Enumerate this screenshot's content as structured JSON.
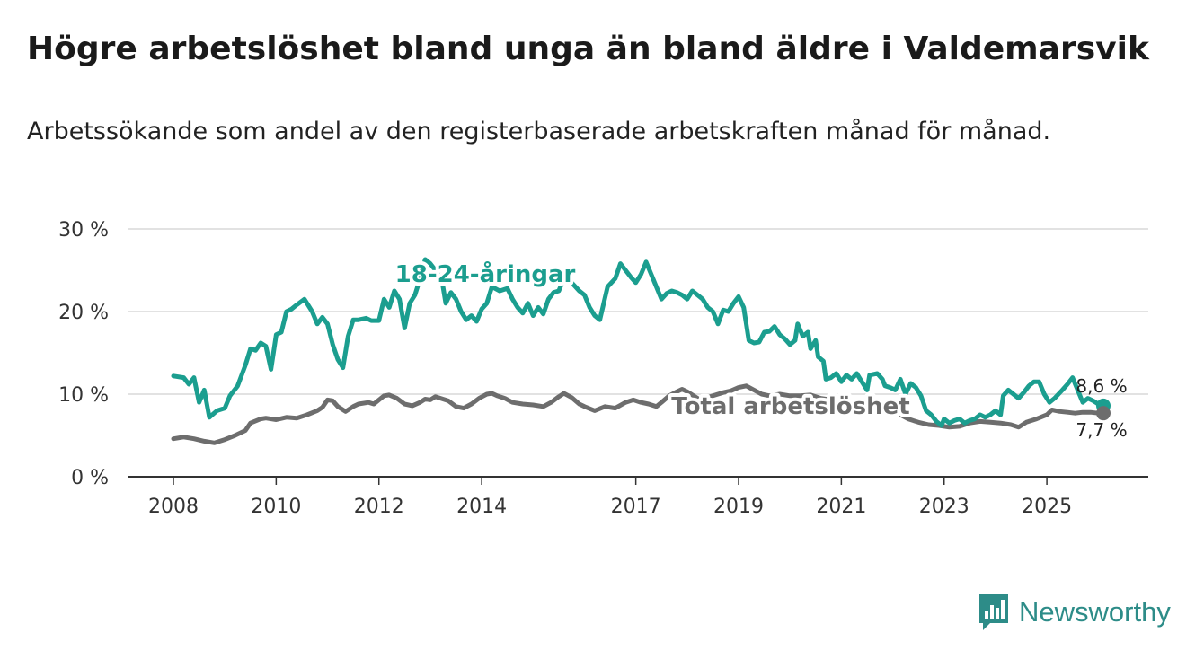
{
  "title": "Högre arbetslöshet bland unga än bland äldre i Valdemarsvik",
  "subtitle": "Arbetssökande som andel av den registerbaserade arbetskraften månad för månad.",
  "brand": {
    "name": "Newsworthy",
    "icon": "newsworthy-logo-icon"
  },
  "colors": {
    "youth": "#1b9e8f",
    "total": "#6d6d6d",
    "grid": "#d9d9d9",
    "axis": "#333333",
    "brand": "#2d8c88"
  },
  "chart_data": {
    "type": "line",
    "title": "Högre arbetslöshet bland unga än bland äldre i Valdemarsvik",
    "xlabel": "",
    "ylabel": "",
    "xlim": [
      2008,
      2026.1
    ],
    "ylim": [
      0,
      30
    ],
    "y_ticks": [
      0,
      10,
      20,
      30
    ],
    "y_tick_labels": [
      "0 %",
      "10 %",
      "20 %",
      "30 %"
    ],
    "x_ticks": [
      2008,
      2010,
      2012,
      2014,
      2017,
      2019,
      2021,
      2023,
      2025
    ],
    "x_tick_labels": [
      "2008",
      "2010",
      "2012",
      "2014",
      "2017",
      "2019",
      "2021",
      "2023",
      "2025"
    ],
    "grid": true,
    "series": [
      {
        "name": "18-24-åringar",
        "label": "18-24-åringar",
        "points": [
          [
            2008.0,
            12.2
          ],
          [
            2008.2,
            12.0
          ],
          [
            2008.3,
            11.2
          ],
          [
            2008.4,
            12.0
          ],
          [
            2008.5,
            9.0
          ],
          [
            2008.6,
            10.5
          ],
          [
            2008.7,
            7.2
          ],
          [
            2008.85,
            8.0
          ],
          [
            2009.0,
            8.3
          ],
          [
            2009.1,
            9.8
          ],
          [
            2009.25,
            11.0
          ],
          [
            2009.4,
            13.5
          ],
          [
            2009.5,
            15.5
          ],
          [
            2009.6,
            15.3
          ],
          [
            2009.7,
            16.2
          ],
          [
            2009.8,
            15.8
          ],
          [
            2009.9,
            13.0
          ],
          [
            2010.0,
            17.2
          ],
          [
            2010.1,
            17.5
          ],
          [
            2010.2,
            20.0
          ],
          [
            2010.3,
            20.3
          ],
          [
            2010.4,
            20.8
          ],
          [
            2010.55,
            21.5
          ],
          [
            2010.7,
            20.0
          ],
          [
            2010.8,
            18.5
          ],
          [
            2010.9,
            19.3
          ],
          [
            2011.0,
            18.5
          ],
          [
            2011.1,
            16.0
          ],
          [
            2011.2,
            14.2
          ],
          [
            2011.3,
            13.2
          ],
          [
            2011.4,
            17.0
          ],
          [
            2011.5,
            19.0
          ],
          [
            2011.6,
            19.0
          ],
          [
            2011.75,
            19.2
          ],
          [
            2011.85,
            18.9
          ],
          [
            2012.0,
            18.9
          ],
          [
            2012.1,
            21.5
          ],
          [
            2012.2,
            20.5
          ],
          [
            2012.3,
            22.5
          ],
          [
            2012.4,
            21.5
          ],
          [
            2012.5,
            18.0
          ],
          [
            2012.6,
            21.0
          ],
          [
            2012.7,
            22.0
          ],
          [
            2012.8,
            24.0
          ],
          [
            2012.9,
            26.3
          ],
          [
            2013.0,
            25.8
          ],
          [
            2013.1,
            25.0
          ],
          [
            2013.2,
            24.8
          ],
          [
            2013.3,
            21.0
          ],
          [
            2013.4,
            22.3
          ],
          [
            2013.5,
            21.5
          ],
          [
            2013.6,
            20.0
          ],
          [
            2013.7,
            19.0
          ],
          [
            2013.8,
            19.5
          ],
          [
            2013.9,
            18.8
          ],
          [
            2014.0,
            20.3
          ],
          [
            2014.1,
            21.0
          ],
          [
            2014.2,
            23.0
          ],
          [
            2014.35,
            22.5
          ],
          [
            2014.5,
            22.8
          ],
          [
            2014.6,
            21.5
          ],
          [
            2014.7,
            20.5
          ],
          [
            2014.8,
            19.8
          ],
          [
            2014.9,
            21.0
          ],
          [
            2015.0,
            19.5
          ],
          [
            2015.1,
            20.5
          ],
          [
            2015.2,
            19.7
          ],
          [
            2015.3,
            21.5
          ],
          [
            2015.4,
            22.3
          ],
          [
            2015.5,
            22.5
          ],
          [
            2015.6,
            24.0
          ],
          [
            2015.75,
            23.5
          ],
          [
            2015.9,
            22.5
          ],
          [
            2016.0,
            22.0
          ],
          [
            2016.1,
            20.5
          ],
          [
            2016.2,
            19.5
          ],
          [
            2016.3,
            19.0
          ],
          [
            2016.45,
            23.0
          ],
          [
            2016.6,
            24.0
          ],
          [
            2016.7,
            25.8
          ],
          [
            2016.8,
            25.0
          ],
          [
            2016.9,
            24.2
          ],
          [
            2017.0,
            23.5
          ],
          [
            2017.1,
            24.5
          ],
          [
            2017.2,
            26.0
          ],
          [
            2017.3,
            24.5
          ],
          [
            2017.4,
            23.0
          ],
          [
            2017.5,
            21.5
          ],
          [
            2017.6,
            22.2
          ],
          [
            2017.7,
            22.5
          ],
          [
            2017.8,
            22.3
          ],
          [
            2017.9,
            22.0
          ],
          [
            2018.0,
            21.5
          ],
          [
            2018.1,
            22.5
          ],
          [
            2018.2,
            22.0
          ],
          [
            2018.3,
            21.5
          ],
          [
            2018.4,
            20.5
          ],
          [
            2018.5,
            20.0
          ],
          [
            2018.6,
            18.5
          ],
          [
            2018.7,
            20.2
          ],
          [
            2018.8,
            20.0
          ],
          [
            2018.9,
            21.0
          ],
          [
            2019.0,
            21.8
          ],
          [
            2019.1,
            20.5
          ],
          [
            2019.2,
            16.5
          ],
          [
            2019.3,
            16.2
          ],
          [
            2019.4,
            16.3
          ],
          [
            2019.5,
            17.5
          ],
          [
            2019.6,
            17.6
          ],
          [
            2019.7,
            18.2
          ],
          [
            2019.8,
            17.2
          ],
          [
            2019.9,
            16.7
          ],
          [
            2020.0,
            16.0
          ],
          [
            2020.1,
            16.5
          ],
          [
            2020.15,
            18.5
          ],
          [
            2020.25,
            17.0
          ],
          [
            2020.35,
            17.5
          ],
          [
            2020.4,
            15.5
          ],
          [
            2020.5,
            16.5
          ],
          [
            2020.55,
            14.5
          ],
          [
            2020.65,
            14.0
          ],
          [
            2020.7,
            11.8
          ],
          [
            2020.8,
            12.0
          ],
          [
            2020.9,
            12.5
          ],
          [
            2021.0,
            11.5
          ],
          [
            2021.1,
            12.3
          ],
          [
            2021.2,
            11.8
          ],
          [
            2021.3,
            12.5
          ],
          [
            2021.4,
            11.5
          ],
          [
            2021.5,
            10.5
          ],
          [
            2021.55,
            12.3
          ],
          [
            2021.7,
            12.5
          ],
          [
            2021.8,
            11.8
          ],
          [
            2021.85,
            11.0
          ],
          [
            2021.95,
            10.8
          ],
          [
            2022.05,
            10.5
          ],
          [
            2022.15,
            11.8
          ],
          [
            2022.25,
            10.0
          ],
          [
            2022.35,
            11.3
          ],
          [
            2022.45,
            10.8
          ],
          [
            2022.55,
            9.8
          ],
          [
            2022.65,
            8.0
          ],
          [
            2022.75,
            7.5
          ],
          [
            2022.85,
            6.7
          ],
          [
            2022.95,
            6.2
          ],
          [
            2023.0,
            7.0
          ],
          [
            2023.1,
            6.5
          ],
          [
            2023.2,
            6.8
          ],
          [
            2023.3,
            7.0
          ],
          [
            2023.4,
            6.5
          ],
          [
            2023.5,
            6.8
          ],
          [
            2023.6,
            7.0
          ],
          [
            2023.7,
            7.5
          ],
          [
            2023.8,
            7.2
          ],
          [
            2023.9,
            7.5
          ],
          [
            2024.0,
            8.0
          ],
          [
            2024.1,
            7.5
          ],
          [
            2024.15,
            9.8
          ],
          [
            2024.25,
            10.5
          ],
          [
            2024.35,
            10.0
          ],
          [
            2024.45,
            9.5
          ],
          [
            2024.55,
            10.2
          ],
          [
            2024.65,
            11.0
          ],
          [
            2024.75,
            11.5
          ],
          [
            2024.85,
            11.5
          ],
          [
            2024.95,
            10.0
          ],
          [
            2025.05,
            9.0
          ],
          [
            2025.15,
            9.5
          ],
          [
            2025.3,
            10.5
          ],
          [
            2025.4,
            11.2
          ],
          [
            2025.5,
            12.0
          ],
          [
            2025.6,
            10.5
          ],
          [
            2025.7,
            9.0
          ],
          [
            2025.8,
            9.5
          ],
          [
            2025.9,
            9.2
          ],
          [
            2026.0,
            8.8
          ],
          [
            2026.1,
            8.6
          ]
        ]
      },
      {
        "name": "Total arbetslöshet",
        "label": "Total arbetslöshet",
        "points": [
          [
            2008.0,
            4.6
          ],
          [
            2008.2,
            4.8
          ],
          [
            2008.4,
            4.6
          ],
          [
            2008.6,
            4.3
          ],
          [
            2008.8,
            4.1
          ],
          [
            2009.0,
            4.5
          ],
          [
            2009.2,
            5.0
          ],
          [
            2009.4,
            5.6
          ],
          [
            2009.5,
            6.5
          ],
          [
            2009.7,
            7.0
          ],
          [
            2009.8,
            7.1
          ],
          [
            2010.0,
            6.9
          ],
          [
            2010.2,
            7.2
          ],
          [
            2010.4,
            7.1
          ],
          [
            2010.6,
            7.5
          ],
          [
            2010.8,
            8.0
          ],
          [
            2010.9,
            8.4
          ],
          [
            2011.0,
            9.3
          ],
          [
            2011.1,
            9.2
          ],
          [
            2011.2,
            8.5
          ],
          [
            2011.35,
            7.9
          ],
          [
            2011.5,
            8.5
          ],
          [
            2011.6,
            8.8
          ],
          [
            2011.8,
            9.0
          ],
          [
            2011.9,
            8.8
          ],
          [
            2012.0,
            9.3
          ],
          [
            2012.1,
            9.8
          ],
          [
            2012.2,
            9.9
          ],
          [
            2012.35,
            9.5
          ],
          [
            2012.5,
            8.8
          ],
          [
            2012.65,
            8.6
          ],
          [
            2012.8,
            9.0
          ],
          [
            2012.9,
            9.4
          ],
          [
            2013.0,
            9.3
          ],
          [
            2013.1,
            9.7
          ],
          [
            2013.2,
            9.5
          ],
          [
            2013.35,
            9.2
          ],
          [
            2013.5,
            8.5
          ],
          [
            2013.65,
            8.3
          ],
          [
            2013.8,
            8.8
          ],
          [
            2013.95,
            9.5
          ],
          [
            2014.1,
            10.0
          ],
          [
            2014.2,
            10.1
          ],
          [
            2014.3,
            9.8
          ],
          [
            2014.45,
            9.5
          ],
          [
            2014.6,
            9.0
          ],
          [
            2014.8,
            8.8
          ],
          [
            2015.0,
            8.7
          ],
          [
            2015.2,
            8.5
          ],
          [
            2015.35,
            9.0
          ],
          [
            2015.5,
            9.7
          ],
          [
            2015.6,
            10.1
          ],
          [
            2015.75,
            9.6
          ],
          [
            2015.9,
            8.8
          ],
          [
            2016.0,
            8.5
          ],
          [
            2016.2,
            8.0
          ],
          [
            2016.4,
            8.5
          ],
          [
            2016.6,
            8.3
          ],
          [
            2016.8,
            9.0
          ],
          [
            2016.95,
            9.3
          ],
          [
            2017.1,
            9.0
          ],
          [
            2017.25,
            8.8
          ],
          [
            2017.4,
            8.5
          ],
          [
            2017.5,
            9.0
          ],
          [
            2017.65,
            9.8
          ],
          [
            2017.8,
            10.3
          ],
          [
            2017.9,
            10.6
          ],
          [
            2018.0,
            10.3
          ],
          [
            2018.1,
            9.9
          ],
          [
            2018.25,
            9.3
          ],
          [
            2018.35,
            9.5
          ],
          [
            2018.5,
            9.8
          ],
          [
            2018.7,
            10.2
          ],
          [
            2018.85,
            10.4
          ],
          [
            2019.0,
            10.8
          ],
          [
            2019.15,
            11.0
          ],
          [
            2019.3,
            10.5
          ],
          [
            2019.45,
            10.0
          ],
          [
            2019.6,
            9.8
          ],
          [
            2019.8,
            10.0
          ],
          [
            2020.0,
            9.8
          ],
          [
            2020.2,
            9.8
          ],
          [
            2020.4,
            9.9
          ],
          [
            2020.6,
            9.5
          ],
          [
            2020.8,
            9.3
          ],
          [
            2021.0,
            9.0
          ],
          [
            2021.2,
            8.9
          ],
          [
            2021.4,
            8.8
          ],
          [
            2021.6,
            8.8
          ],
          [
            2021.8,
            8.9
          ],
          [
            2022.0,
            8.5
          ],
          [
            2022.15,
            7.5
          ],
          [
            2022.3,
            7.0
          ],
          [
            2022.5,
            6.6
          ],
          [
            2022.7,
            6.3
          ],
          [
            2022.9,
            6.2
          ],
          [
            2023.1,
            6.0
          ],
          [
            2023.3,
            6.1
          ],
          [
            2023.5,
            6.5
          ],
          [
            2023.7,
            6.7
          ],
          [
            2023.9,
            6.6
          ],
          [
            2024.1,
            6.5
          ],
          [
            2024.3,
            6.3
          ],
          [
            2024.45,
            6.0
          ],
          [
            2024.6,
            6.6
          ],
          [
            2024.8,
            7.0
          ],
          [
            2025.0,
            7.5
          ],
          [
            2025.1,
            8.1
          ],
          [
            2025.25,
            7.9
          ],
          [
            2025.4,
            7.8
          ],
          [
            2025.55,
            7.7
          ],
          [
            2025.7,
            7.8
          ],
          [
            2025.85,
            7.8
          ],
          [
            2026.0,
            7.7
          ],
          [
            2026.1,
            7.7
          ]
        ]
      }
    ],
    "annotations": [
      {
        "series": "18-24-åringar",
        "text": "8,6 %",
        "value": 8.6
      },
      {
        "series": "Total arbetslöshet",
        "text": "7,7 %",
        "value": 7.7
      }
    ]
  }
}
